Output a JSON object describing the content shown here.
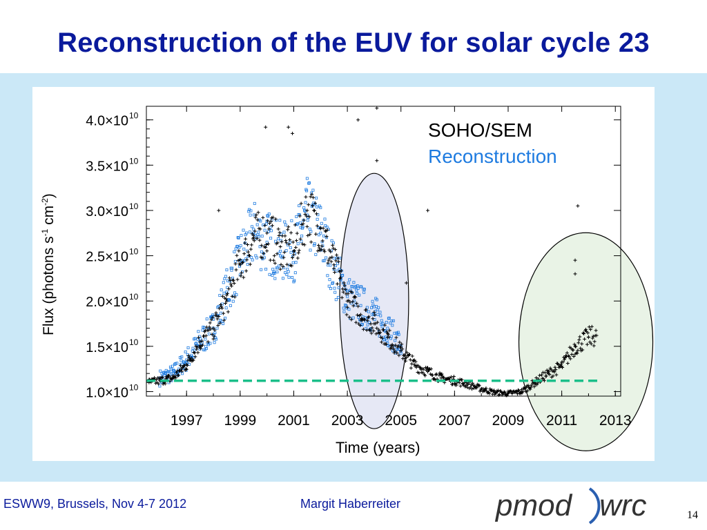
{
  "slide": {
    "title": "Reconstruction of the EUV for solar cycle 23",
    "footer_left": "ESWW9, Brussels, Nov 4-7 2012",
    "footer_author": "Margit Haberreiter",
    "logo_left": "pmod",
    "logo_right": "wrc",
    "page_number": "14"
  },
  "colors": {
    "title": "#0a1a9c",
    "background_band": "#cbe8f7",
    "soho": "#000000",
    "reconstruction": "#1e7be0",
    "baseline": "#1bbf8a",
    "ellipse_2004": "#e6e8f5",
    "ellipse_2012": "#e9f3e6"
  },
  "chart_data": {
    "type": "scatter",
    "xlabel": "Time (years)",
    "ylabel": "Flux (photons s-1 cm-2)",
    "xlim": [
      1995.5,
      2013.2
    ],
    "ylim": [
      0.95,
      4.15
    ],
    "x_ticks": [
      "1997",
      "1999",
      "2001",
      "2003",
      "2005",
      "2007",
      "2009",
      "2011",
      "2013"
    ],
    "y_ticks": [
      {
        "value": 1.0,
        "mantissa": "1.0",
        "exponent": "10"
      },
      {
        "value": 1.5,
        "mantissa": "1.5",
        "exponent": "10"
      },
      {
        "value": 2.0,
        "mantissa": "2.0",
        "exponent": "10"
      },
      {
        "value": 2.5,
        "mantissa": "2.5",
        "exponent": "10"
      },
      {
        "value": 3.0,
        "mantissa": "3.0",
        "exponent": "10"
      },
      {
        "value": 3.5,
        "mantissa": "3.5",
        "exponent": "10"
      },
      {
        "value": 4.0,
        "mantissa": "4.0",
        "exponent": "10"
      }
    ],
    "y_unit_factor": "×10",
    "legend": [
      "SOHO/SEM",
      "Reconstruction"
    ],
    "legend_position": "top-right",
    "series": [
      {
        "name": "SOHO/SEM",
        "marker": "plus",
        "x": [
          1995.6,
          1996.0,
          1996.5,
          1997.0,
          1997.5,
          1998.0,
          1998.5,
          1999.0,
          1999.5,
          2000.0,
          2000.5,
          2001.0,
          2001.5,
          2002.0,
          2002.5,
          2003.0,
          2003.5,
          2004.0,
          2004.5,
          2005.0,
          2005.5,
          2006.0,
          2006.5,
          2007.0,
          2007.5,
          2008.0,
          2008.5,
          2009.0,
          2009.5,
          2010.0,
          2010.5,
          2011.0,
          2011.5,
          2012.0,
          2012.3
        ],
        "y": [
          1.1,
          1.12,
          1.15,
          1.3,
          1.55,
          1.7,
          2.0,
          2.4,
          2.7,
          2.75,
          2.6,
          2.55,
          3.0,
          2.8,
          2.4,
          2.0,
          1.85,
          1.75,
          1.6,
          1.45,
          1.3,
          1.22,
          1.15,
          1.12,
          1.08,
          1.03,
          0.99,
          0.98,
          1.0,
          1.1,
          1.2,
          1.28,
          1.5,
          1.6,
          1.62
        ]
      },
      {
        "name": "Reconstruction",
        "marker": "square",
        "x": [
          1996.0,
          1996.5,
          1997.0,
          1997.5,
          1998.0,
          1998.5,
          1999.0,
          1999.5,
          2000.0,
          2000.5,
          2001.0,
          2001.5,
          2002.0,
          2002.5,
          2003.0,
          2003.5,
          2004.0,
          2004.5,
          2005.0
        ],
        "y": [
          1.15,
          1.2,
          1.35,
          1.55,
          1.7,
          2.1,
          2.45,
          2.75,
          2.65,
          2.55,
          2.55,
          2.95,
          2.75,
          2.35,
          2.05,
          1.95,
          1.85,
          1.7,
          1.5
        ]
      }
    ],
    "outliers": [
      {
        "x": 1999.95,
        "y": 3.92
      },
      {
        "x": 2000.8,
        "y": 3.92
      },
      {
        "x": 2000.95,
        "y": 3.85
      },
      {
        "x": 2003.4,
        "y": 4.0
      },
      {
        "x": 2004.1,
        "y": 4.13
      },
      {
        "x": 2004.1,
        "y": 3.55
      },
      {
        "x": 2006.0,
        "y": 3.0
      },
      {
        "x": 2005.2,
        "y": 2.2
      },
      {
        "x": 1998.2,
        "y": 3.0
      },
      {
        "x": 2011.5,
        "y": 2.45
      },
      {
        "x": 2011.6,
        "y": 3.05
      },
      {
        "x": 2011.5,
        "y": 2.3
      }
    ],
    "baseline_level": 1.12,
    "highlight_regions": [
      {
        "center_x": 2004.0,
        "center_y": 2.0
      },
      {
        "center_x": 2011.9,
        "center_y": 1.55
      }
    ]
  }
}
